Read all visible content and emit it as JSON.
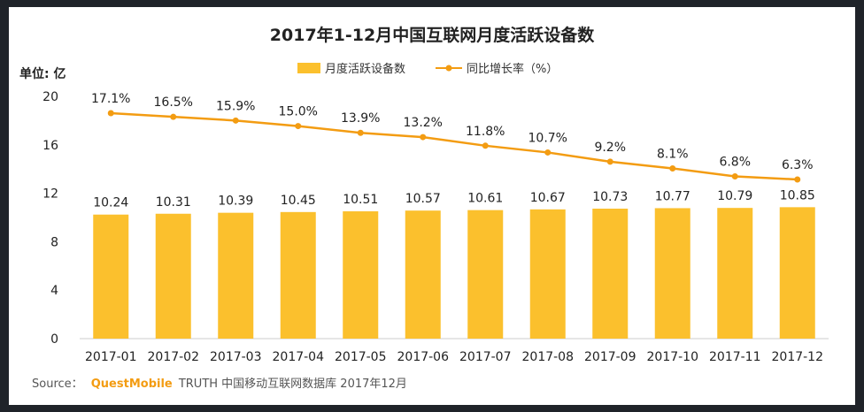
{
  "chart_data": {
    "type": "bar",
    "title": "2017年1-12月中国互联网月度活跃设备数",
    "unit_label": "单位: 亿",
    "categories": [
      "2017-01",
      "2017-02",
      "2017-03",
      "2017-04",
      "2017-05",
      "2017-06",
      "2017-07",
      "2017-08",
      "2017-09",
      "2017-10",
      "2017-11",
      "2017-12"
    ],
    "ylim": [
      0,
      20
    ],
    "yticks": [
      0,
      4,
      8,
      12,
      16,
      20
    ],
    "series": [
      {
        "name": "月度活跃设备数",
        "kind": "bar",
        "color": "#FBC02D",
        "values": [
          10.24,
          10.31,
          10.39,
          10.45,
          10.51,
          10.57,
          10.61,
          10.67,
          10.73,
          10.77,
          10.79,
          10.85
        ],
        "labels": [
          "10.24",
          "10.31",
          "10.39",
          "10.45",
          "10.51",
          "10.57",
          "10.61",
          "10.67",
          "10.73",
          "10.77",
          "10.79",
          "10.85"
        ]
      },
      {
        "name": "同比增长率（%）",
        "kind": "line",
        "color": "#F39C12",
        "values": [
          17.1,
          16.5,
          15.9,
          15.0,
          13.9,
          13.2,
          11.8,
          10.7,
          9.2,
          8.1,
          6.8,
          6.3
        ],
        "labels": [
          "17.1%",
          "16.5%",
          "15.9%",
          "15.0%",
          "13.9%",
          "13.2%",
          "11.8%",
          "10.7%",
          "9.2%",
          "8.1%",
          "6.8%",
          "6.3%"
        ]
      }
    ],
    "legend_position": "top-center",
    "grid": false
  },
  "source": {
    "prefix": "Source：",
    "brand": "QuestMobile",
    "rest": "TRUTH 中国移动互联网数据库 2017年12月"
  }
}
